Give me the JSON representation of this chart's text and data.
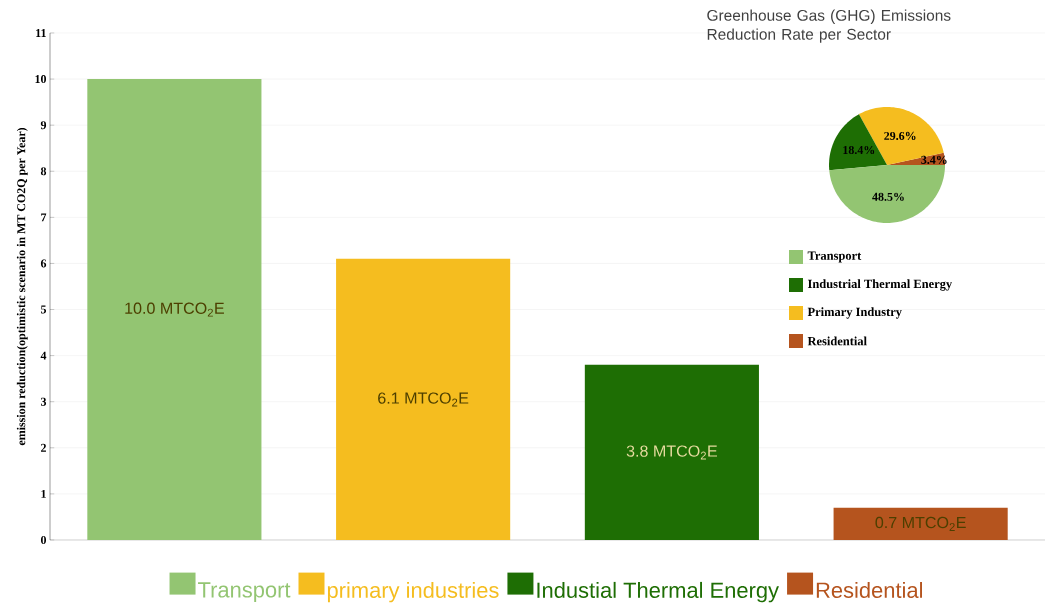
{
  "chart_data": [
    {
      "type": "bar",
      "ylabel": "emission reduction(optimistic scenario in MT CO2Q per Year)",
      "categories": [
        null,
        null,
        null,
        null
      ],
      "series": [
        {
          "name": "Transport",
          "color": "#93c572",
          "values": [
            10.0,
            null,
            null,
            null
          ],
          "value_labels": [
            "10.0 MTCO$_{2}$E",
            null,
            null,
            null
          ]
        },
        {
          "name": "primary industries",
          "color": "#f5bd1f",
          "values": [
            null,
            6.1,
            null,
            null
          ],
          "value_labels": [
            null,
            "6.1 MTCO$_{2}$E",
            null,
            null
          ]
        },
        {
          "name": "Industial Thermal Energy",
          "color": "#1e6e04",
          "values": [
            null,
            null,
            3.8,
            null
          ],
          "value_labels": [
            null,
            null,
            "3.8 MTCO$_{2}$E",
            null
          ]
        },
        {
          "name": "Residential",
          "color": "#b5541e",
          "values": [
            null,
            null,
            null,
            0.7
          ],
          "value_labels": [
            null,
            null,
            null,
            "0.7 MTCO$_{2}$E"
          ]
        }
      ],
      "ylim": [
        0,
        11
      ],
      "yticks": [
        0,
        1,
        2,
        3,
        4,
        5,
        6,
        7,
        8,
        9,
        10,
        11
      ],
      "grid": "y",
      "legend": "bottom"
    },
    {
      "type": "pie",
      "title": "Greenhouse Gas (GHG) Emissions Reduction Rate per Sector",
      "categories": [
        "Transport",
        "Industrial Thermal Energy",
        "Primary Industry",
        "Residential"
      ],
      "values": [
        48.5,
        18.4,
        29.6,
        3.4
      ],
      "colors": [
        "#93c572",
        "#1e6e04",
        "#f5bd1f",
        "#b5541e"
      ],
      "value_labels": [
        "48.5%",
        "18.4%",
        "29.6%",
        "3.4%"
      ],
      "legend": "bottom"
    }
  ]
}
